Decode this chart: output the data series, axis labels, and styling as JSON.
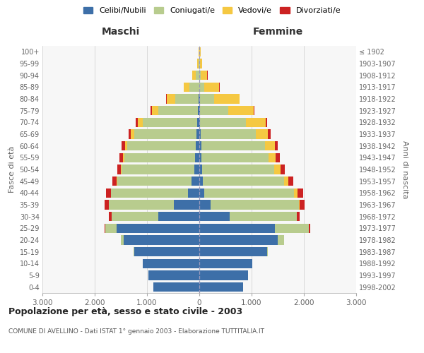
{
  "age_groups": [
    "0-4",
    "5-9",
    "10-14",
    "15-19",
    "20-24",
    "25-29",
    "30-34",
    "35-39",
    "40-44",
    "45-49",
    "50-54",
    "55-59",
    "60-64",
    "65-69",
    "70-74",
    "75-79",
    "80-84",
    "85-89",
    "90-94",
    "95-99",
    "100+"
  ],
  "birth_years": [
    "1998-2002",
    "1993-1997",
    "1988-1992",
    "1983-1987",
    "1978-1982",
    "1973-1977",
    "1968-1972",
    "1963-1967",
    "1958-1962",
    "1953-1957",
    "1948-1952",
    "1943-1947",
    "1938-1942",
    "1933-1937",
    "1928-1932",
    "1923-1927",
    "1918-1922",
    "1913-1917",
    "1908-1912",
    "1903-1907",
    "≤ 1902"
  ],
  "maschi": {
    "celibi": [
      880,
      970,
      1080,
      1250,
      1450,
      1580,
      780,
      480,
      210,
      150,
      100,
      80,
      65,
      50,
      35,
      22,
      12,
      6,
      3,
      1,
      1
    ],
    "coniugati": [
      0,
      0,
      0,
      5,
      50,
      220,
      900,
      1250,
      1480,
      1420,
      1380,
      1350,
      1320,
      1200,
      1050,
      760,
      450,
      180,
      70,
      18,
      4
    ],
    "vedovi": [
      0,
      0,
      0,
      0,
      0,
      0,
      0,
      0,
      5,
      8,
      15,
      25,
      35,
      55,
      90,
      130,
      160,
      110,
      65,
      22,
      8
    ],
    "divorziati": [
      0,
      0,
      0,
      0,
      5,
      15,
      50,
      80,
      90,
      90,
      75,
      70,
      65,
      45,
      35,
      18,
      8,
      4,
      2,
      1,
      0
    ]
  },
  "femmine": {
    "nubili": [
      840,
      930,
      1020,
      1300,
      1500,
      1450,
      580,
      220,
      90,
      65,
      50,
      40,
      35,
      25,
      18,
      12,
      8,
      4,
      2,
      1,
      1
    ],
    "coniugate": [
      0,
      0,
      0,
      10,
      120,
      650,
      1280,
      1680,
      1720,
      1550,
      1380,
      1280,
      1220,
      1050,
      870,
      540,
      270,
      90,
      28,
      7,
      2
    ],
    "vedove": [
      0,
      0,
      0,
      0,
      0,
      0,
      5,
      25,
      70,
      90,
      120,
      145,
      190,
      240,
      380,
      490,
      490,
      290,
      125,
      48,
      18
    ],
    "divorziate": [
      0,
      0,
      0,
      0,
      8,
      18,
      50,
      90,
      100,
      90,
      80,
      70,
      60,
      45,
      28,
      18,
      8,
      4,
      2,
      1,
      0
    ]
  },
  "colors": {
    "celibi_nubili": "#3d6fa8",
    "coniugati": "#b8cc8e",
    "vedovi": "#f5c842",
    "divorziati": "#cc2222"
  },
  "title": "Popolazione per età, sesso e stato civile - 2003",
  "subtitle": "COMUNE DI AVELLINO - Dati ISTAT 1° gennaio 2003 - Elaborazione TUTTITALIA.IT",
  "xlabel_left": "Maschi",
  "xlabel_right": "Femmine",
  "ylabel_left": "Fasce di età",
  "ylabel_right": "Anni di nascita",
  "legend_labels": [
    "Celibi/Nubili",
    "Coniugati/e",
    "Vedovi/e",
    "Divorziati/e"
  ],
  "xlim": 3000,
  "background_color": "#ffffff",
  "plot_bg_color": "#f7f7f7",
  "grid_color": "#cccccc"
}
